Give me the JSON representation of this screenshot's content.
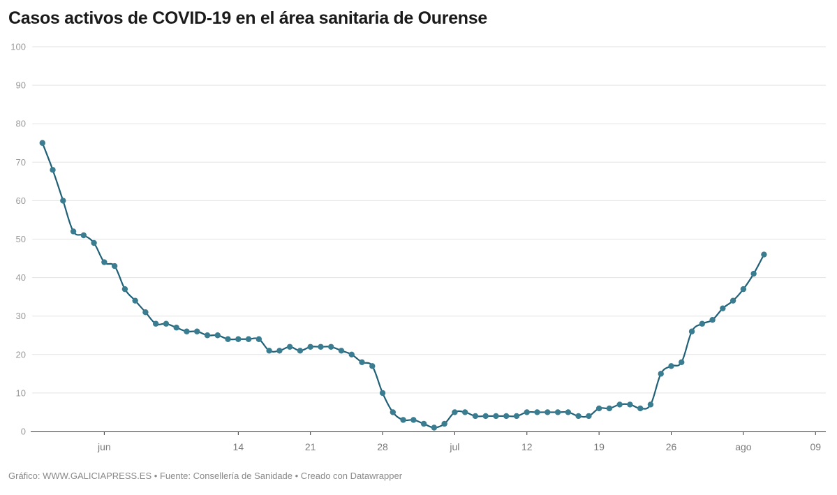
{
  "title": "Casos activos de COVID-19 en el área sanitaria de Ourense",
  "footer": {
    "credit": "Gráfico: WWW.GALICIAPRESS.ES",
    "source": "Fuente: Consellería de Sanidade",
    "tool": "Creado con Datawrapper",
    "separator": " • "
  },
  "colors": {
    "line": "#1f6077",
    "point": "#3a7c90",
    "grid": "#e3e3e3",
    "axis": "#333333"
  },
  "chart_data": {
    "type": "line",
    "title": "Casos activos de COVID-19 en el área sanitaria de Ourense",
    "xlabel": "",
    "ylabel": "",
    "ylim": [
      0,
      100
    ],
    "yticks": [
      0,
      10,
      20,
      30,
      40,
      50,
      60,
      70,
      80,
      90,
      100
    ],
    "grid": true,
    "x_start_date": "2020-05-25",
    "x_end_date": "2020-08-10",
    "xticks": [
      {
        "date": "2020-06-01",
        "label": "jun"
      },
      {
        "date": "2020-06-14",
        "label": "14"
      },
      {
        "date": "2020-06-21",
        "label": "21"
      },
      {
        "date": "2020-06-28",
        "label": "28"
      },
      {
        "date": "2020-07-05",
        "label": "jul"
      },
      {
        "date": "2020-07-12",
        "label": "12"
      },
      {
        "date": "2020-07-19",
        "label": "19"
      },
      {
        "date": "2020-07-26",
        "label": "26"
      },
      {
        "date": "2020-08-02",
        "label": "ago"
      },
      {
        "date": "2020-08-09",
        "label": "09"
      }
    ],
    "series": [
      {
        "points": [
          [
            "2020-05-26",
            75
          ],
          [
            "2020-05-27",
            68
          ],
          [
            "2020-05-28",
            60
          ],
          [
            "2020-05-29",
            52
          ],
          [
            "2020-05-30",
            51
          ],
          [
            "2020-05-31",
            49
          ],
          [
            "2020-06-01",
            44
          ],
          [
            "2020-06-02",
            43
          ],
          [
            "2020-06-03",
            37
          ],
          [
            "2020-06-04",
            34
          ],
          [
            "2020-06-05",
            31
          ],
          [
            "2020-06-06",
            28
          ],
          [
            "2020-06-07",
            28
          ],
          [
            "2020-06-08",
            27
          ],
          [
            "2020-06-09",
            26
          ],
          [
            "2020-06-10",
            26
          ],
          [
            "2020-06-11",
            25
          ],
          [
            "2020-06-12",
            25
          ],
          [
            "2020-06-13",
            24
          ],
          [
            "2020-06-14",
            24
          ],
          [
            "2020-06-15",
            24
          ],
          [
            "2020-06-16",
            24
          ],
          [
            "2020-06-17",
            21
          ],
          [
            "2020-06-18",
            21
          ],
          [
            "2020-06-19",
            22
          ],
          [
            "2020-06-20",
            21
          ],
          [
            "2020-06-21",
            22
          ],
          [
            "2020-06-22",
            22
          ],
          [
            "2020-06-23",
            22
          ],
          [
            "2020-06-24",
            21
          ],
          [
            "2020-06-25",
            20
          ],
          [
            "2020-06-26",
            18
          ],
          [
            "2020-06-27",
            17
          ],
          [
            "2020-06-28",
            10
          ],
          [
            "2020-06-29",
            5
          ],
          [
            "2020-06-30",
            3
          ],
          [
            "2020-07-01",
            3
          ],
          [
            "2020-07-02",
            2
          ],
          [
            "2020-07-03",
            1
          ],
          [
            "2020-07-04",
            2
          ],
          [
            "2020-07-05",
            5
          ],
          [
            "2020-07-06",
            5
          ],
          [
            "2020-07-07",
            4
          ],
          [
            "2020-07-08",
            4
          ],
          [
            "2020-07-09",
            4
          ],
          [
            "2020-07-10",
            4
          ],
          [
            "2020-07-11",
            4
          ],
          [
            "2020-07-12",
            5
          ],
          [
            "2020-07-13",
            5
          ],
          [
            "2020-07-14",
            5
          ],
          [
            "2020-07-15",
            5
          ],
          [
            "2020-07-16",
            5
          ],
          [
            "2020-07-17",
            4
          ],
          [
            "2020-07-18",
            4
          ],
          [
            "2020-07-19",
            6
          ],
          [
            "2020-07-20",
            6
          ],
          [
            "2020-07-21",
            7
          ],
          [
            "2020-07-22",
            7
          ],
          [
            "2020-07-23",
            6
          ],
          [
            "2020-07-24",
            7
          ],
          [
            "2020-07-25",
            15
          ],
          [
            "2020-07-26",
            17
          ],
          [
            "2020-07-27",
            18
          ],
          [
            "2020-07-28",
            26
          ],
          [
            "2020-07-29",
            28
          ],
          [
            "2020-07-30",
            29
          ],
          [
            "2020-07-31",
            32
          ],
          [
            "2020-08-01",
            34
          ],
          [
            "2020-08-02",
            37
          ],
          [
            "2020-08-03",
            41
          ],
          [
            "2020-08-04",
            46
          ]
        ]
      }
    ]
  }
}
